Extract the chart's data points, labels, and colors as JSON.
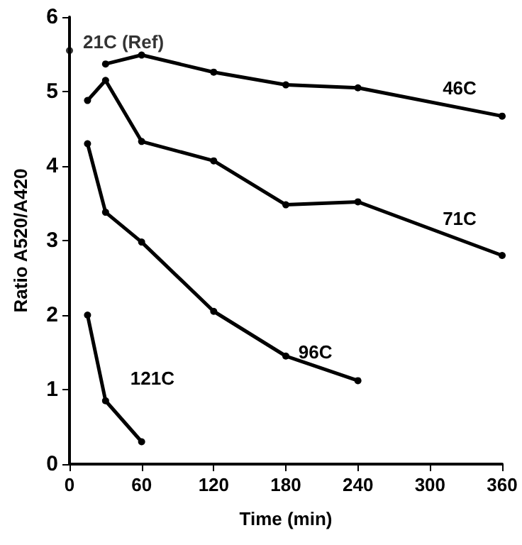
{
  "chart_data": {
    "type": "line",
    "xlabel": "Time (min)",
    "ylabel": "Ratio A520/A420",
    "xlim": [
      0,
      360
    ],
    "xticks": [
      0,
      60,
      120,
      180,
      240,
      300,
      360
    ],
    "ylim": [
      0,
      6
    ],
    "yticks": [
      0,
      1,
      2,
      3,
      4,
      5,
      6
    ],
    "grid": false,
    "legend": false,
    "marker": "circle",
    "line_style": "solid",
    "series": [
      {
        "name": "21C (Ref)",
        "type": "scatter",
        "color": "#000000",
        "x": [
          0
        ],
        "values": [
          5.55
        ]
      },
      {
        "name": "46C",
        "color": "#000000",
        "x": [
          30,
          60,
          120,
          180,
          240,
          360
        ],
        "values": [
          5.37,
          5.49,
          5.26,
          5.09,
          5.05,
          4.67
        ]
      },
      {
        "name": "71C",
        "color": "#000000",
        "x": [
          15,
          30,
          60,
          120,
          180,
          240,
          360
        ],
        "values": [
          4.88,
          5.15,
          4.33,
          4.07,
          3.48,
          3.52,
          2.8
        ]
      },
      {
        "name": "96C",
        "color": "#000000",
        "x": [
          15,
          30,
          60,
          120,
          180,
          240
        ],
        "values": [
          4.3,
          3.38,
          2.98,
          2.05,
          1.45,
          1.12
        ]
      },
      {
        "name": "121C",
        "color": "#000000",
        "x": [
          15,
          30,
          60
        ],
        "values": [
          2.0,
          0.85,
          0.3
        ]
      }
    ]
  }
}
